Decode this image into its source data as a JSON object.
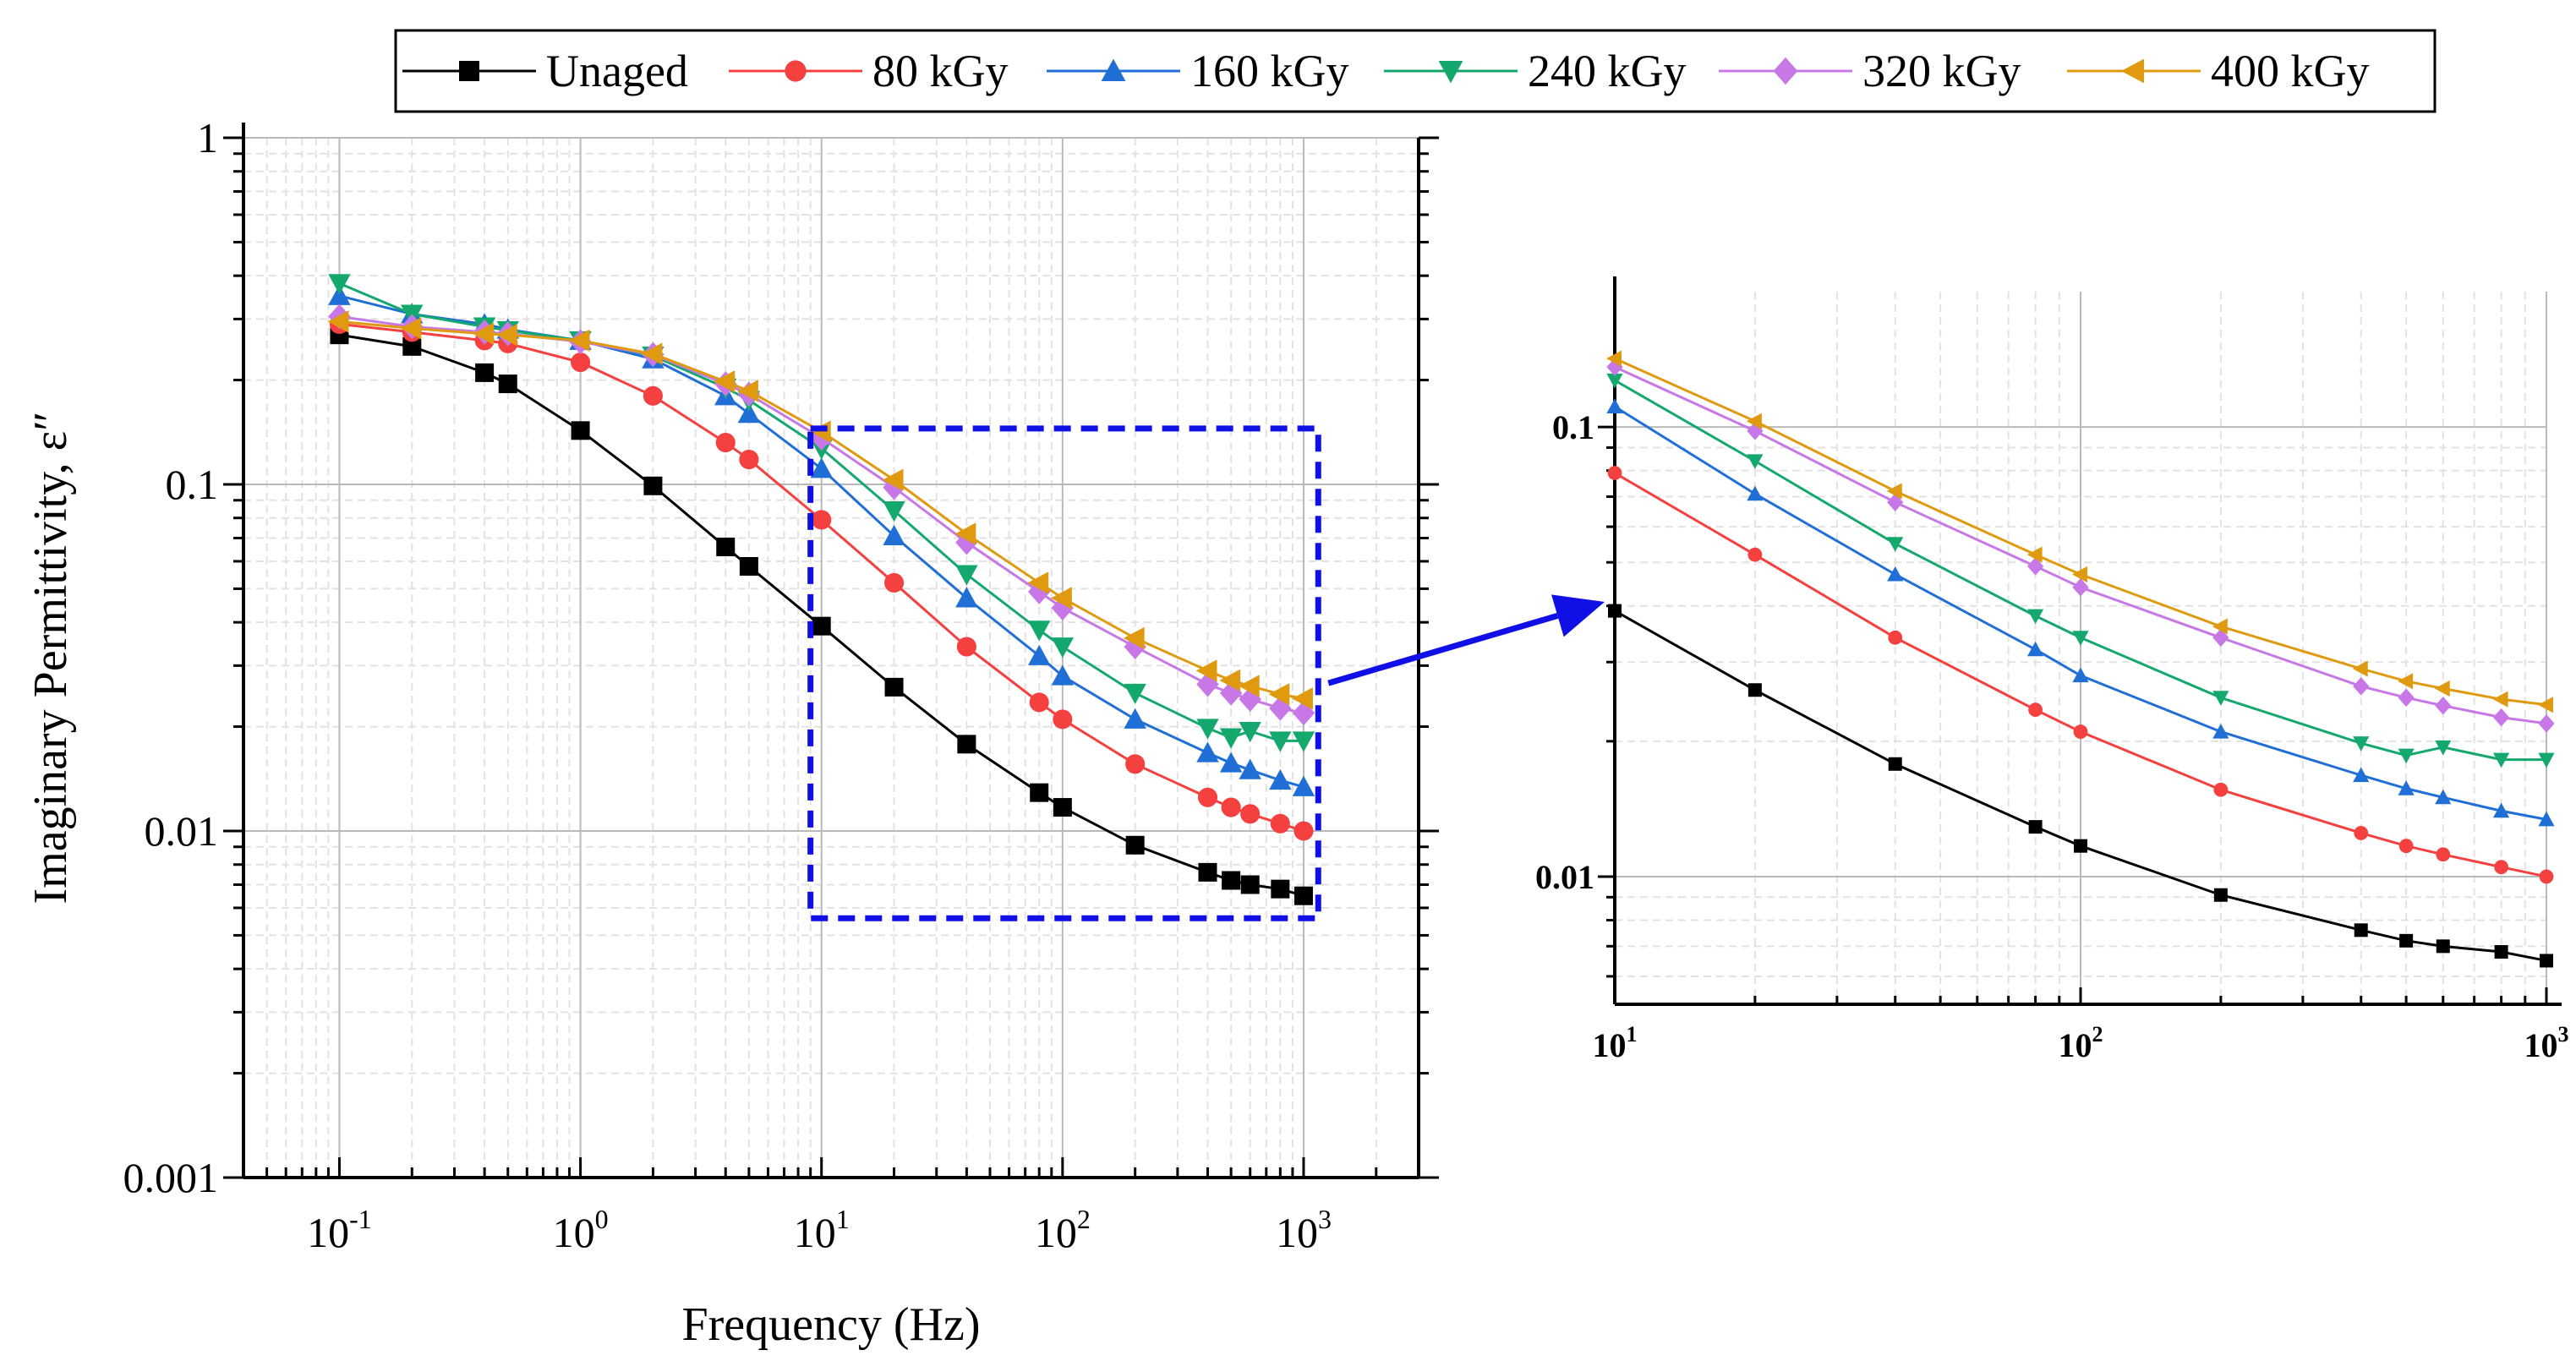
{
  "chart_data": [
    {
      "id": "main",
      "type": "line",
      "xscale": "log",
      "yscale": "log",
      "xlabel": "Frequency (Hz)",
      "ylabel": "Imaginary Permittivity, ε″",
      "xlim": [
        0.04,
        3000
      ],
      "ylim": [
        0.001,
        1
      ],
      "xticks": [
        {
          "value": 0.1,
          "base": "10",
          "exp": "-1"
        },
        {
          "value": 1,
          "base": "10",
          "exp": "0"
        },
        {
          "value": 10,
          "base": "10",
          "exp": "1"
        },
        {
          "value": 100,
          "base": "10",
          "exp": "2"
        },
        {
          "value": 1000,
          "base": "10",
          "exp": "3"
        }
      ],
      "yticks": [
        {
          "value": 1,
          "label": "1"
        },
        {
          "value": 0.1,
          "label": "0.1"
        },
        {
          "value": 0.01,
          "label": "0.01"
        },
        {
          "value": 0.001,
          "label": "0.001"
        }
      ],
      "grid": true,
      "zoom_box": {
        "x": [
          9,
          1150
        ],
        "y": [
          0.0056,
          0.145
        ]
      }
    },
    {
      "id": "inset",
      "type": "line",
      "xscale": "log",
      "yscale": "log",
      "xlim": [
        10,
        1000
      ],
      "ylim": [
        0.0052,
        0.2
      ],
      "xticks": [
        {
          "value": 10,
          "base": "10",
          "exp": "1"
        },
        {
          "value": 100,
          "base": "10",
          "exp": "2"
        },
        {
          "value": 1000,
          "base": "10",
          "exp": "3"
        }
      ],
      "yticks": [
        {
          "value": 0.1,
          "label": "0.1"
        },
        {
          "value": 0.01,
          "label": "0.01"
        }
      ],
      "grid": true
    }
  ],
  "series": [
    {
      "name": "Unaged",
      "color": "#000000",
      "marker": "square",
      "x": [
        0.1,
        0.2,
        0.4,
        0.5,
        1,
        2,
        4,
        5,
        10,
        20,
        40,
        80,
        100,
        200,
        400,
        500,
        600,
        800,
        1000
      ],
      "y": [
        0.27,
        0.25,
        0.21,
        0.195,
        0.143,
        0.099,
        0.066,
        0.058,
        0.039,
        0.026,
        0.0178,
        0.0129,
        0.0117,
        0.0091,
        0.0076,
        0.0072,
        0.007,
        0.0068,
        0.0065
      ]
    },
    {
      "name": "80 kGy",
      "color": "#f4403f",
      "marker": "circle",
      "x": [
        0.1,
        0.2,
        0.4,
        0.5,
        1,
        2,
        4,
        5,
        10,
        20,
        40,
        80,
        100,
        200,
        400,
        500,
        600,
        800,
        1000
      ],
      "y": [
        0.29,
        0.275,
        0.26,
        0.255,
        0.225,
        0.18,
        0.132,
        0.118,
        0.079,
        0.052,
        0.034,
        0.0235,
        0.021,
        0.0156,
        0.0125,
        0.0117,
        0.0112,
        0.0105,
        0.01
      ]
    },
    {
      "name": "160 kGy",
      "color": "#1f6fd6",
      "marker": "triangle-up",
      "x": [
        0.1,
        0.2,
        0.4,
        0.5,
        1,
        2,
        4,
        5,
        10,
        20,
        40,
        80,
        100,
        200,
        400,
        500,
        600,
        800,
        1000
      ],
      "y": [
        0.35,
        0.31,
        0.29,
        0.28,
        0.26,
        0.23,
        0.18,
        0.16,
        0.111,
        0.071,
        0.047,
        0.032,
        0.028,
        0.021,
        0.0168,
        0.0157,
        0.015,
        0.014,
        0.0134
      ]
    },
    {
      "name": "240 kGy",
      "color": "#14a86e",
      "marker": "triangle-down",
      "x": [
        0.1,
        0.2,
        0.4,
        0.5,
        1,
        2,
        4,
        5,
        10,
        20,
        40,
        80,
        100,
        200,
        400,
        500,
        600,
        800,
        1000
      ],
      "y": [
        0.38,
        0.31,
        0.285,
        0.278,
        0.26,
        0.235,
        0.19,
        0.175,
        0.127,
        0.084,
        0.055,
        0.038,
        0.034,
        0.025,
        0.0198,
        0.0186,
        0.0194,
        0.0182,
        0.0182
      ]
    },
    {
      "name": "320 kGy",
      "color": "#c878e6",
      "marker": "diamond",
      "x": [
        0.1,
        0.2,
        0.4,
        0.5,
        1,
        2,
        4,
        5,
        10,
        20,
        40,
        80,
        100,
        200,
        400,
        500,
        600,
        800,
        1000
      ],
      "y": [
        0.305,
        0.285,
        0.275,
        0.272,
        0.258,
        0.237,
        0.195,
        0.182,
        0.136,
        0.098,
        0.068,
        0.049,
        0.044,
        0.034,
        0.0265,
        0.025,
        0.024,
        0.0226,
        0.0219
      ]
    },
    {
      "name": "400 kGy",
      "color": "#e09a10",
      "marker": "triangle-left",
      "x": [
        0.1,
        0.2,
        0.4,
        0.5,
        1,
        2,
        4,
        5,
        10,
        20,
        40,
        80,
        100,
        200,
        400,
        500,
        600,
        800,
        1000
      ],
      "y": [
        0.295,
        0.282,
        0.272,
        0.27,
        0.26,
        0.238,
        0.198,
        0.186,
        0.142,
        0.103,
        0.072,
        0.052,
        0.047,
        0.036,
        0.029,
        0.0272,
        0.0262,
        0.0248,
        0.0241
      ]
    }
  ],
  "legend": {
    "placement": "top-center"
  }
}
